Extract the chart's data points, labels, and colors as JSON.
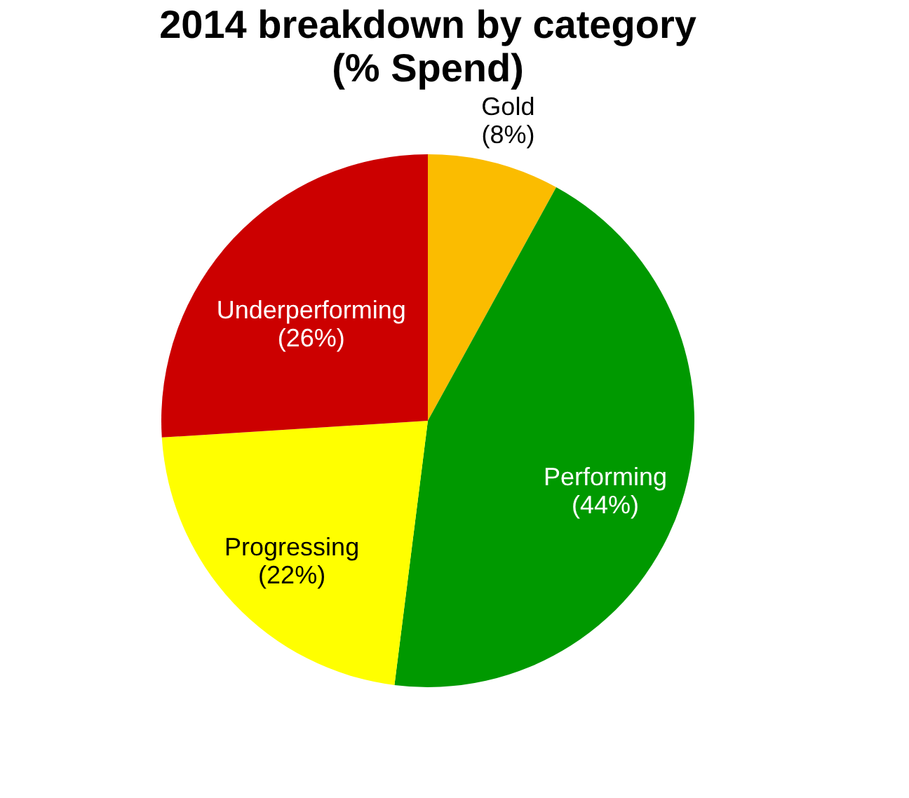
{
  "chart_data": {
    "type": "pie",
    "title": "2014 breakdown by category",
    "subtitle": "(% Spend)",
    "categories": [
      "Gold",
      "Performing",
      "Progressing",
      "Underperforming"
    ],
    "values": [
      8,
      44,
      22,
      26
    ],
    "colors": [
      "#fbbc00",
      "#009900",
      "#ffff00",
      "#cc0000"
    ],
    "value_labels": [
      "(8%)",
      "(44%)",
      "(22%)",
      "(26%)"
    ],
    "legend": false
  }
}
